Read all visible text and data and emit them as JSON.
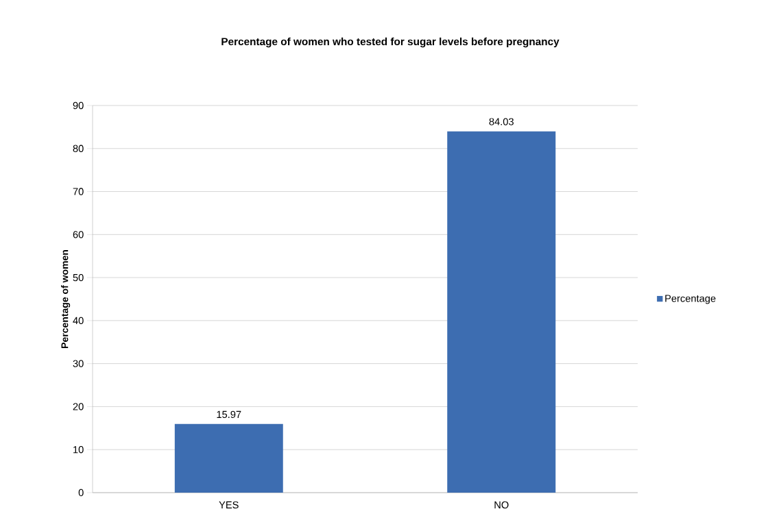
{
  "chart_data": {
    "type": "bar",
    "title": "Percentage of women who tested for sugar levels before pregnancy",
    "ylabel": "Percentage of women",
    "categories": [
      "YES",
      "NO"
    ],
    "series": [
      {
        "name": "Percentage",
        "color": "#3d6db1",
        "values": [
          15.97,
          84.03
        ]
      }
    ],
    "ylim": [
      0,
      90
    ],
    "yticks": [
      0,
      10,
      20,
      30,
      40,
      50,
      60,
      70,
      80,
      90
    ],
    "grid": "y",
    "legend": "right",
    "data_labels": true
  }
}
